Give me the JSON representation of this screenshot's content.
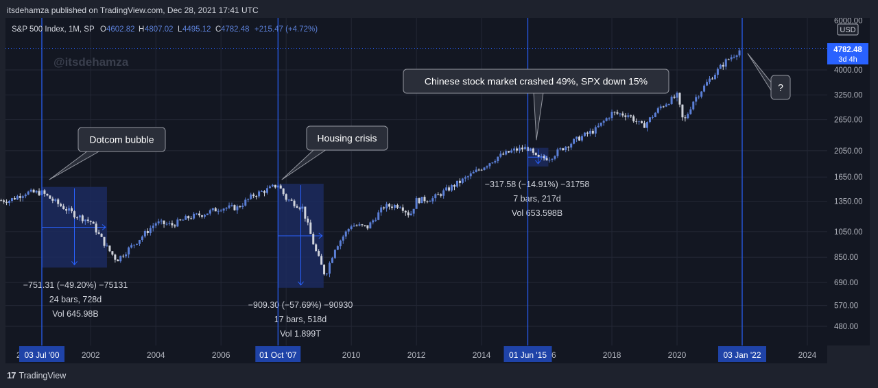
{
  "published_line": "itsdehamza published on TradingView.com, Dec 28, 2021 17:41 UTC",
  "watermark": "@itsdehamza",
  "footer": {
    "logo": "17",
    "brand": "TradingView"
  },
  "legend": {
    "symbol": "S&P 500 Index, 1M, SP",
    "o_label": "O",
    "o_value": "4602.82",
    "h_label": "H",
    "h_value": "4807.02",
    "l_label": "L",
    "l_value": "4495.12",
    "c_label": "C",
    "c_value": "4782.48",
    "change": "+215.47 (+4.72%)"
  },
  "price_axis": {
    "top_label": "6000.00",
    "currency": "USD",
    "last_price": "4782.48",
    "countdown": "3d 4h",
    "ticks": [
      "4000.00",
      "3250.00",
      "2650.00",
      "2050.00",
      "1650.00",
      "1350.00",
      "1050.00",
      "850.00",
      "690.00",
      "570.00",
      "480.00"
    ]
  },
  "time_axis": {
    "left_stub": "2",
    "years": [
      "2002",
      "2004",
      "2006",
      "2008",
      "2010",
      "2012",
      "2014",
      "2018",
      "2020",
      "2024"
    ],
    "stub_6": "6",
    "markers": [
      "03 Jul '00",
      "01 Oct '07",
      "01 Jun '15",
      "03 Jan '22"
    ]
  },
  "callouts": {
    "dotcom": "Dotcom bubble",
    "housing": "Housing crisis",
    "china": "Chinese stock market crashed 49%, SPX down 15%",
    "question": "?"
  },
  "measurements": {
    "dotcom": [
      "−751.31 (−49.20%) −75131",
      "24 bars, 728d",
      "Vol 645.98B"
    ],
    "housing": [
      "−909.30 (−57.69%) −90930",
      "17 bars, 518d",
      "Vol 1.899T"
    ],
    "china": [
      "−317.58 (−14.91%) −31758",
      "7 bars, 217d",
      "Vol 653.598B"
    ]
  },
  "colors": {
    "background": "#131722",
    "frame": "#1e222d",
    "grid": "#242836",
    "candle_up": "#5b7fd6",
    "candle_down": "#d1d4dc",
    "vline": "#2962ff",
    "marker_bg": "#1f43a8",
    "measure_fill": "#1c2a5e",
    "last_price_bg": "#2962ff"
  },
  "chart_data": {
    "type": "candlestick",
    "symbol": "S&P 500 Index",
    "interval": "1M",
    "x": [
      1999.5,
      2000.0,
      2000.5,
      2001.0,
      2001.5,
      2002.0,
      2002.5,
      2002.8,
      2003.5,
      2004.0,
      2004.5,
      2005.0,
      2005.5,
      2006.0,
      2006.5,
      2007.0,
      2007.5,
      2007.75,
      2008.0,
      2008.5,
      2008.9,
      2009.2,
      2009.5,
      2010.0,
      2010.5,
      2011.0,
      2011.5,
      2011.8,
      2012.0,
      2012.5,
      2013.0,
      2013.5,
      2014.0,
      2014.5,
      2015.0,
      2015.4,
      2015.7,
      2016.1,
      2016.5,
      2017.0,
      2017.5,
      2018.0,
      2018.5,
      2018.95,
      2019.5,
      2020.0,
      2020.2,
      2020.5,
      2021.0,
      2021.5,
      2021.99
    ],
    "y": [
      1360,
      1450,
      1450,
      1320,
      1210,
      1140,
      920,
      830,
      990,
      1130,
      1110,
      1180,
      1220,
      1280,
      1280,
      1420,
      1500,
      1550,
      1380,
      1280,
      900,
      730,
      920,
      1110,
      1090,
      1290,
      1310,
      1200,
      1360,
      1380,
      1500,
      1630,
      1780,
      1950,
      2060,
      2100,
      1920,
      1940,
      2100,
      2280,
      2440,
      2800,
      2760,
      2500,
      2950,
      3230,
      2580,
      3100,
      3700,
      4300,
      4782.48
    ],
    "ylabel": "USD",
    "y_scale": "log",
    "ylim": [
      400,
      6000
    ],
    "xlim": [
      1999.2,
      2025.2
    ],
    "last_value": 4782.48,
    "ohlc_last": {
      "open": 4602.82,
      "high": 4807.02,
      "low": 4495.12,
      "close": 4782.48
    },
    "events": [
      {
        "date": "03 Jul '00",
        "x": 2000.5,
        "label": "Dotcom bubble",
        "drawdown_pct": -49.2,
        "points": -751.31,
        "bars": 24,
        "days": 728
      },
      {
        "date": "01 Oct '07",
        "x": 2007.75,
        "label": "Housing crisis",
        "drawdown_pct": -57.69,
        "points": -909.3,
        "bars": 17,
        "days": 518
      },
      {
        "date": "01 Jun '15",
        "x": 2015.42,
        "label": "Chinese stock market crashed 49%, SPX down 15%",
        "drawdown_pct": -14.91,
        "points": -317.58,
        "bars": 7,
        "days": 217
      },
      {
        "date": "03 Jan '22",
        "x": 2022.0,
        "label": "?"
      }
    ]
  }
}
